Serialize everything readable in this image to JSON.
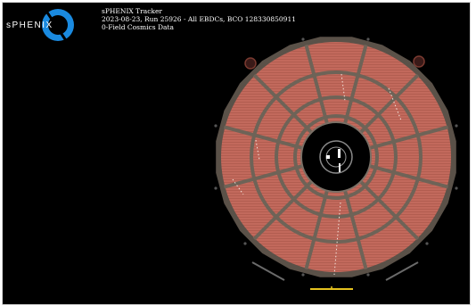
{
  "logo": {
    "text": "sPHENIX",
    "accent": "#1a8ae0"
  },
  "header": {
    "title": "sPHENIX Tracker",
    "run_line": "2023-08-23, Run 25926 - All EBDCs, BCO 128330850911",
    "subtitle": "0-Field Cosmics Data"
  },
  "colors": {
    "background": "#000000",
    "pad_plane": "#c2695c",
    "frame": "#6e6357",
    "scale_bar": "#e6c21f"
  },
  "detector": {
    "sectors": 12,
    "rings": 3,
    "name": "tpc-endcap"
  }
}
